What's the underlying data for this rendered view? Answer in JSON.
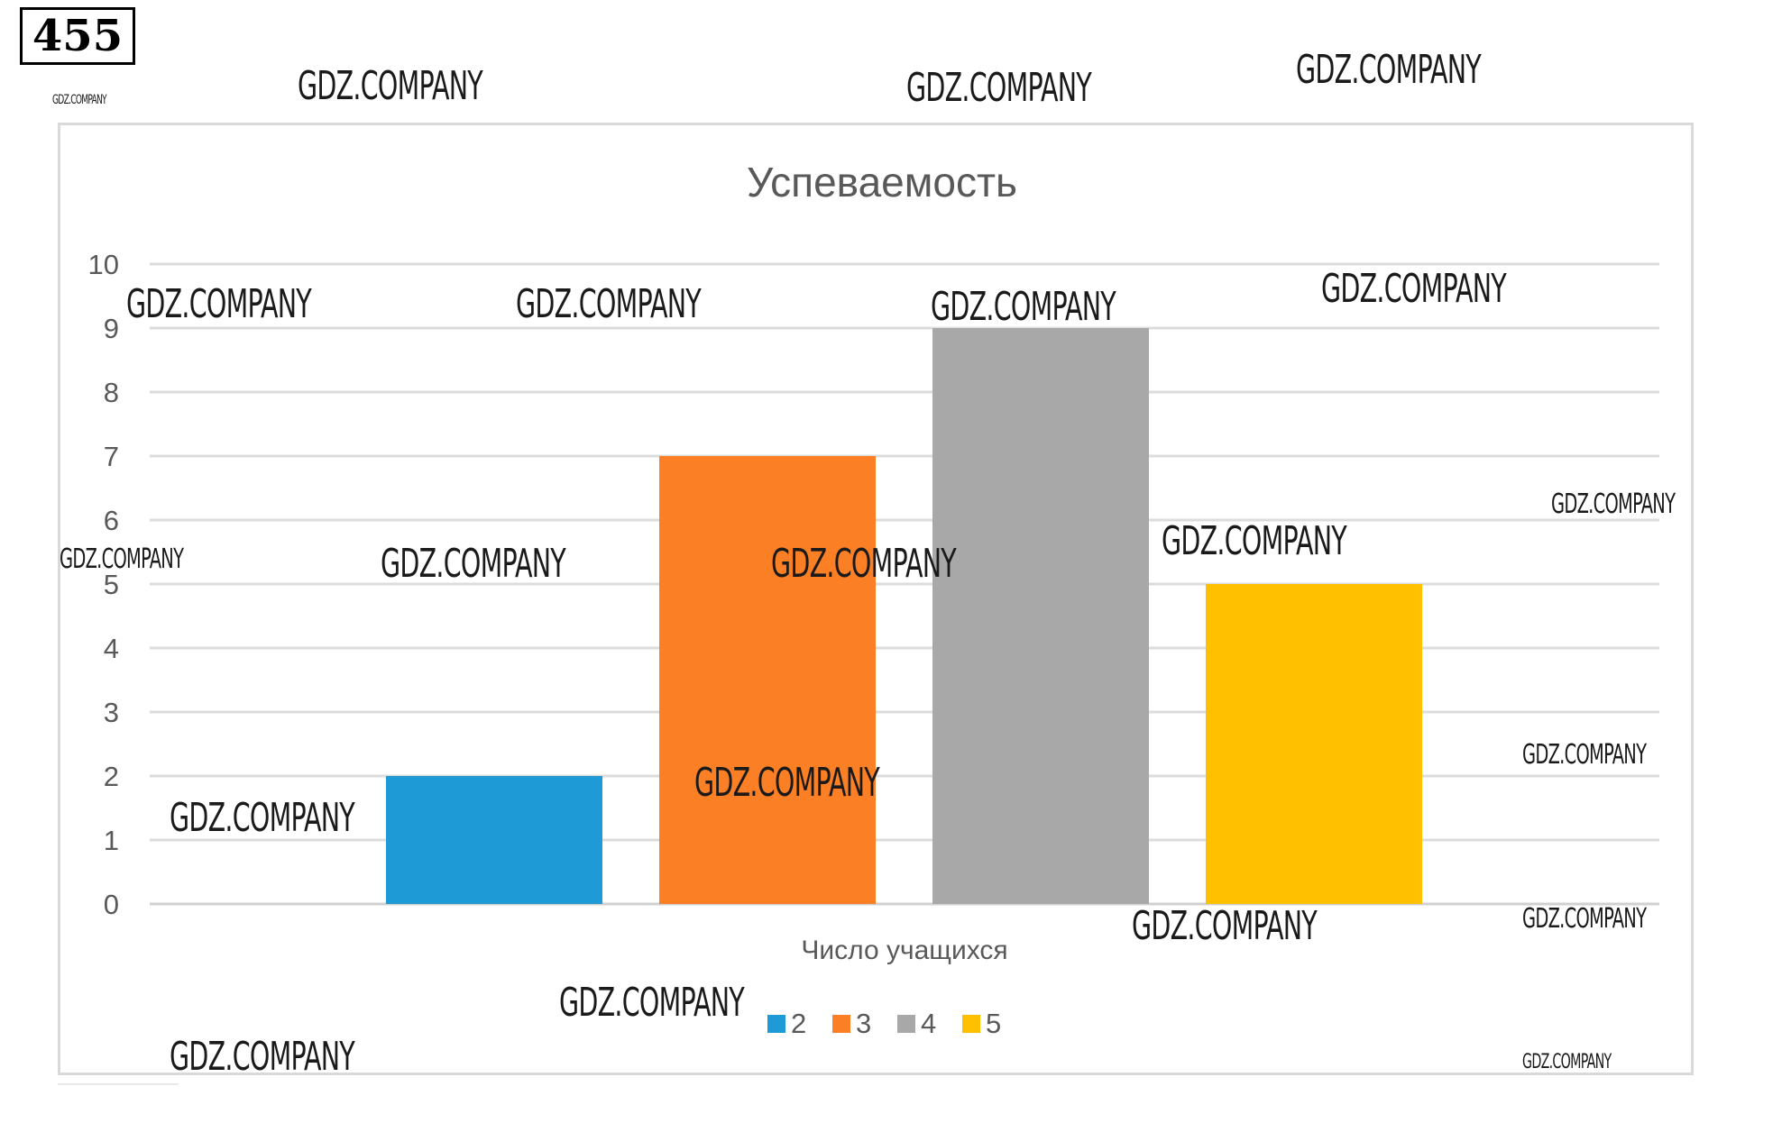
{
  "problem_number": "455",
  "watermark_text": "GDZ.COMPANY",
  "chart_data": {
    "type": "bar",
    "title": "Успеваемость",
    "xlabel": "Число учащихся",
    "ylabel": "",
    "ylim": [
      0,
      10
    ],
    "y_ticks": [
      "0",
      "1",
      "2",
      "3",
      "4",
      "5",
      "6",
      "7",
      "8",
      "9",
      "10"
    ],
    "grid": true,
    "legend_position": "bottom",
    "series": [
      {
        "name": "2",
        "values": [
          2
        ],
        "color": "#1e9ad6"
      },
      {
        "name": "3",
        "values": [
          7
        ],
        "color": "#fb7f24"
      },
      {
        "name": "4",
        "values": [
          9
        ],
        "color": "#a8a8a8"
      },
      {
        "name": "5",
        "values": [
          5
        ],
        "color": "#ffc000"
      }
    ]
  }
}
